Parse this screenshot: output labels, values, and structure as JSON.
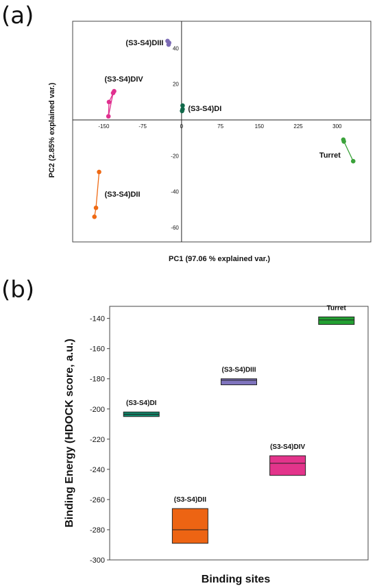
{
  "panels": {
    "a_label": "(a)",
    "b_label": "(b)"
  },
  "chart_data": [
    {
      "type": "scatter",
      "title": "",
      "xlabel": "PC1 (97.06 % explained var.)",
      "ylabel": "PC2 (2.85% explained var.)",
      "xlim": [
        -210,
        365
      ],
      "ylim": [
        -68,
        55
      ],
      "xticks": [
        -150,
        -75,
        0,
        75,
        150,
        225,
        300
      ],
      "yticks": [
        40,
        20,
        -20,
        -40,
        -60
      ],
      "series": [
        {
          "name": "(S3-S4)DIII",
          "color": "#7c6bb5",
          "points": [
            [
              -27,
              44
            ],
            [
              -25,
              42
            ],
            [
              -24,
              43
            ]
          ]
        },
        {
          "name": "(S3-S4)DIV",
          "color": "#e0308f",
          "points": [
            [
              -130,
              16
            ],
            [
              -140,
              10
            ],
            [
              -141,
              2
            ],
            [
              -132,
              15
            ]
          ]
        },
        {
          "name": "(S3-S4)DI",
          "color": "#11694a",
          "points": [
            [
              2,
              8
            ],
            [
              2,
              6
            ],
            [
              1,
              5
            ]
          ]
        },
        {
          "name": "Turret",
          "color": "#3aa23a",
          "points": [
            [
              312,
              -11
            ],
            [
              313,
              -12
            ],
            [
              331,
              -23
            ]
          ]
        },
        {
          "name": "(S3-S4)DII",
          "color": "#ef6a14",
          "points": [
            [
              -159,
              -29
            ],
            [
              -165,
              -49
            ],
            [
              -168,
              -54
            ]
          ]
        }
      ],
      "labels": [
        {
          "text": "(S3-S4)DIII",
          "series": 0
        },
        {
          "text": "(S3-S4)DIV",
          "series": 1
        },
        {
          "text": "(S3-S4)DI",
          "series": 2
        },
        {
          "text": "Turret",
          "series": 3
        },
        {
          "text": "(S3-S4)DII",
          "series": 4
        }
      ],
      "grid": false,
      "zero_lines": true
    },
    {
      "type": "box",
      "title": "",
      "xlabel": "Binding sites",
      "ylabel": "Binding Energy (HDOCK score, a.u.)",
      "ylim": [
        -300,
        -132
      ],
      "yticks": [
        -140,
        -160,
        -180,
        -200,
        -220,
        -240,
        -260,
        -280,
        -300
      ],
      "boxes": [
        {
          "name": "(S3-S4)DI",
          "color": "#10876a",
          "min": -205,
          "q1": -205,
          "median": -203.5,
          "q3": -202,
          "max": -202
        },
        {
          "name": "(S3-S4)DII",
          "color": "#ed6413",
          "min": -289,
          "q1": -289,
          "median": -280,
          "q3": -266,
          "max": -266
        },
        {
          "name": "(S3-S4)DIII",
          "color": "#7f74bd",
          "min": -184,
          "q1": -184,
          "median": -181,
          "q3": -180,
          "max": -180
        },
        {
          "name": "(S3-S4)DIV",
          "color": "#e3348b",
          "min": -244,
          "q1": -244,
          "median": -236,
          "q3": -231,
          "max": -231
        },
        {
          "name": "Turret",
          "color": "#23a032",
          "min": -144,
          "q1": -144,
          "median": -141,
          "q3": -139,
          "max": -139
        }
      ],
      "grid": false
    }
  ]
}
